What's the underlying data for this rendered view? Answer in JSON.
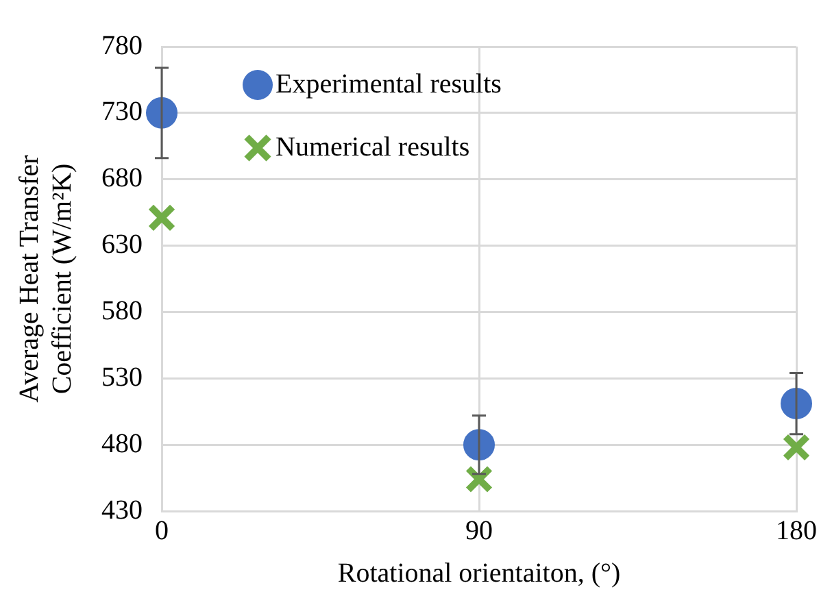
{
  "chart_data": {
    "type": "scatter",
    "xlabel": "Rotational orientaiton, (°)",
    "ylabel": "Average Heat Transfer Coefficient (W/m²K)",
    "x": [
      0,
      90,
      180
    ],
    "xlim": [
      0,
      180
    ],
    "xticks": [
      0,
      90,
      180
    ],
    "ylim": [
      430,
      780
    ],
    "yticks": [
      430,
      480,
      530,
      580,
      630,
      680,
      730,
      780
    ],
    "series": [
      {
        "name": "Experimental results",
        "color": "#4472c4",
        "marker": "circle",
        "values": [
          730,
          480,
          511
        ],
        "errors": [
          34,
          22,
          23
        ]
      },
      {
        "name": "Numerical results",
        "color": "#70ad47",
        "marker": "cross",
        "values": [
          651,
          454,
          478
        ]
      }
    ],
    "grid": true,
    "legend": "top"
  }
}
